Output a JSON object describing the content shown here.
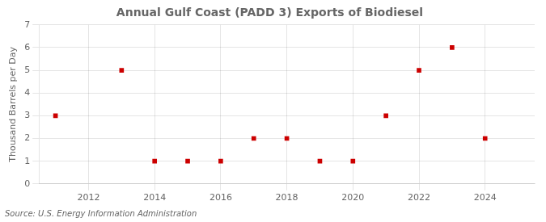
{
  "chart_data": {
    "type": "scatter",
    "title": "Annual Gulf Coast (PADD 3) Exports of Biodiesel",
    "ylabel": "Thousand Barrels per Day",
    "annotations": [
      "Source: U.S. Energy Information Administration"
    ],
    "x": [
      2011,
      2013,
      2014,
      2015,
      2016,
      2017,
      2018,
      2019,
      2020,
      2021,
      2022,
      2023,
      2024
    ],
    "values": [
      3,
      5,
      1,
      1,
      1,
      2,
      2,
      1,
      1,
      3,
      5,
      6,
      2
    ],
    "xlim": [
      2010.5,
      2025.5
    ],
    "xticks": [
      2012,
      2014,
      2016,
      2018,
      2020,
      2022,
      2024
    ],
    "ylim": [
      0,
      7
    ],
    "yticks": [
      0,
      1,
      2,
      3,
      4,
      5,
      6,
      7
    ],
    "color": "#cc0000",
    "marker": "square",
    "grid": true
  }
}
